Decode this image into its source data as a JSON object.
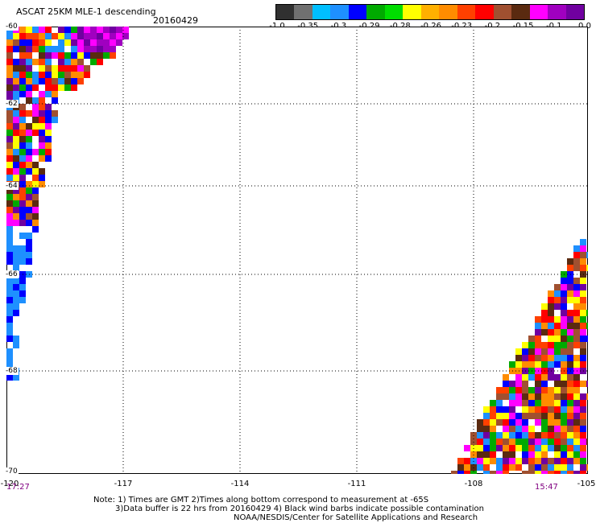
{
  "title": "ASCAT 25KM MLE-1 descending",
  "date": "20160429",
  "colorbar": {
    "colors": [
      "#303030",
      "#707070",
      "#00bfff",
      "#1e90ff",
      "#0000ff",
      "#00aa00",
      "#00dd00",
      "#ffff00",
      "#ffb000",
      "#ff8c00",
      "#ff4000",
      "#ff0000",
      "#a05030",
      "#5a2a10",
      "#ff00ff",
      "#a000c0",
      "#7000a0"
    ],
    "tick_labels": [
      "-1.0",
      "-0.35",
      "-0.3",
      "-0.29",
      "-0.28",
      "-0.26",
      "-0.23",
      "-0.2",
      "-0.15",
      "-0.1",
      "0.0"
    ]
  },
  "map": {
    "lat_labels": [
      "-60",
      "-62",
      "-64",
      "-66",
      "-68",
      "-70"
    ],
    "lon_labels": [
      "-120",
      "-117",
      "-114",
      "-111",
      "-108",
      "-105"
    ],
    "time_start": "17:27",
    "time_end": "15:47",
    "palette": [
      "#ff0000",
      "#ff8c00",
      "#ffff00",
      "#00aa00",
      "#0000ff",
      "#1e90ff",
      "#ff00ff",
      "#7000a0",
      "#5a2a10",
      "#a05030",
      "#ffffff",
      "#ff4000"
    ]
  },
  "notes": [
    "Note: 1) Times are GMT 2)Times along bottom correspond to measurement at -65S",
    "3)Data buffer is 22 hrs from 20160429 4) Black wind barbs indicate possible contamination",
    "NOAA/NESDIS/Center for Satellite Applications and Research"
  ]
}
